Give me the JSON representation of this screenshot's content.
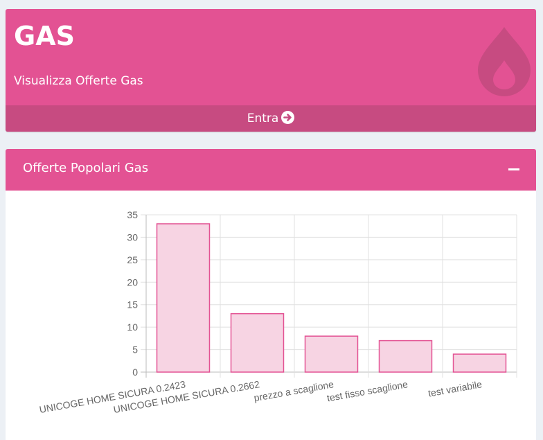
{
  "gas_box": {
    "title": "GAS",
    "subtitle": "Visualizza Offerte Gas",
    "footer_label": "Entra"
  },
  "panel": {
    "title": "Offerte Popolari Gas"
  },
  "chart_data": {
    "type": "bar",
    "categories": [
      "UNICOGE HOME SICURA 0.2423",
      "UNICOGE HOME SICURA 0.2662",
      "prezzo a scaglione",
      "test fisso scaglione",
      "test variabile"
    ],
    "values": [
      33,
      13,
      8,
      7,
      4
    ],
    "y_ticks": [
      "0",
      "5",
      "10",
      "15",
      "20",
      "25",
      "30",
      "35"
    ],
    "ylim": [
      0,
      35
    ],
    "grid": true,
    "bar_fill": "#f7d4e3",
    "bar_stroke": "#e35293"
  }
}
